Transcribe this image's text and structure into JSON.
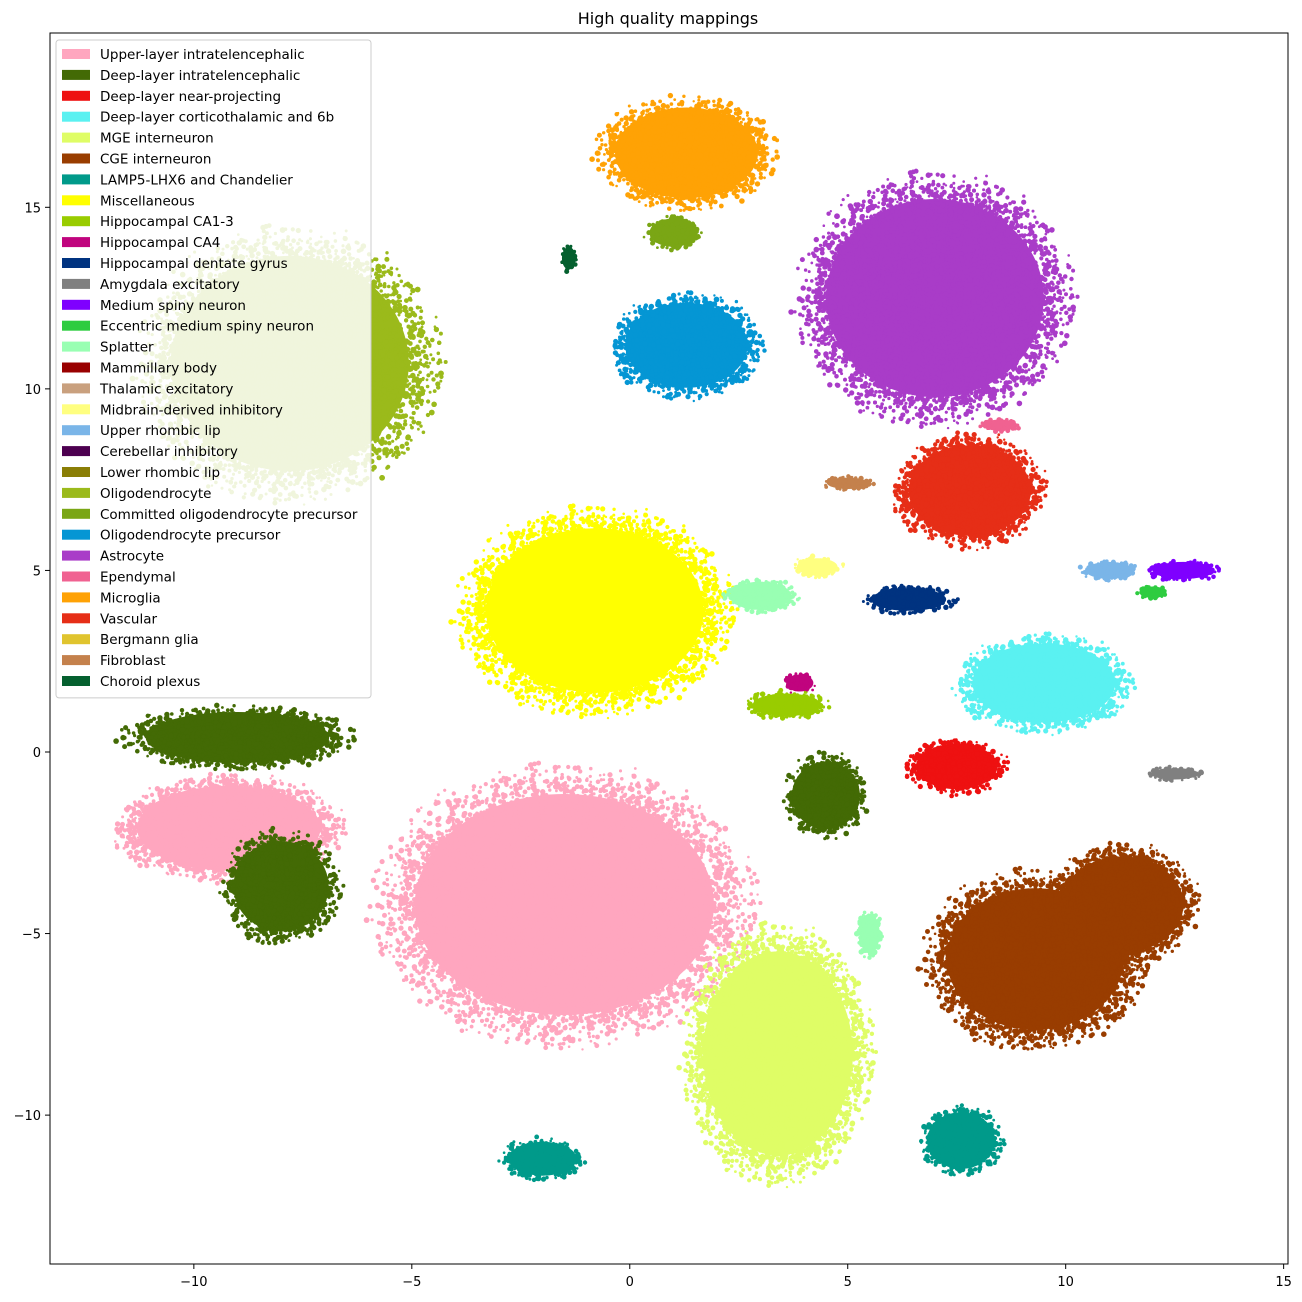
{
  "chart_data": {
    "type": "scatter",
    "title": "High quality mappings",
    "xlabel": "",
    "ylabel": "",
    "xlim": [
      -13.3,
      15.1
    ],
    "ylim": [
      -14.1,
      19.8
    ],
    "xticks": [
      -10,
      -5,
      0,
      5,
      10,
      15
    ],
    "yticks": [
      -10,
      -5,
      0,
      5,
      10,
      15
    ],
    "xtick_labels": [
      "−10",
      "−5",
      "0",
      "5",
      "10",
      "15"
    ],
    "ytick_labels": [
      "−10",
      "−5",
      "0",
      "5",
      "10",
      "15"
    ],
    "grid": false,
    "legend_position": "upper-left",
    "series": [
      {
        "name": "Upper-layer intratelencephalic",
        "color": "#ffa6bf",
        "clusters": [
          {
            "cx": -1.5,
            "cy": -4.2,
            "rx": 4.4,
            "ry": 3.9
          },
          {
            "cx": -9.2,
            "cy": -2.1,
            "rx": 2.7,
            "ry": 1.5
          }
        ]
      },
      {
        "name": "Deep-layer intratelencephalic",
        "color": "#436a05",
        "clusters": [
          {
            "cx": -8.0,
            "cy": -3.7,
            "rx": 1.4,
            "ry": 1.6
          },
          {
            "cx": -9.0,
            "cy": 0.4,
            "rx": 2.7,
            "ry": 0.9
          },
          {
            "cx": 4.5,
            "cy": -1.2,
            "rx": 1.0,
            "ry": 1.2
          }
        ]
      },
      {
        "name": "Deep-layer near-projecting",
        "color": "#ee1111",
        "clusters": [
          {
            "cx": 7.5,
            "cy": -0.4,
            "rx": 1.2,
            "ry": 0.8
          }
        ]
      },
      {
        "name": "Deep-layer corticothalamic and 6b",
        "color": "#5af1f1",
        "clusters": [
          {
            "cx": 9.5,
            "cy": 1.9,
            "rx": 2.1,
            "ry": 1.4
          }
        ]
      },
      {
        "name": "MGE interneuron",
        "color": "#dffd66",
        "clusters": [
          {
            "cx": 3.4,
            "cy": -8.3,
            "rx": 2.2,
            "ry": 3.6
          }
        ]
      },
      {
        "name": "CGE interneuron",
        "color": "#993d00",
        "clusters": [
          {
            "cx": 9.3,
            "cy": -5.7,
            "rx": 2.6,
            "ry": 2.5
          },
          {
            "cx": 11.3,
            "cy": -4.2,
            "rx": 1.8,
            "ry": 1.7
          }
        ]
      },
      {
        "name": "LAMP5-LHX6 and Chandelier",
        "color": "#009a8a",
        "clusters": [
          {
            "cx": 7.6,
            "cy": -10.7,
            "rx": 1.0,
            "ry": 1.0
          },
          {
            "cx": -2.0,
            "cy": -11.2,
            "rx": 1.0,
            "ry": 0.6
          }
        ]
      },
      {
        "name": "Miscellaneous",
        "color": "#ffff00",
        "clusters": [
          {
            "cx": -0.8,
            "cy": 3.9,
            "rx": 3.2,
            "ry": 2.9
          }
        ]
      },
      {
        "name": "Hippocampal CA1-3",
        "color": "#99cc00",
        "clusters": [
          {
            "cx": 3.6,
            "cy": 1.3,
            "rx": 1.0,
            "ry": 0.4
          }
        ]
      },
      {
        "name": "Hippocampal CA4",
        "color": "#c0047e",
        "clusters": [
          {
            "cx": 3.9,
            "cy": 1.9,
            "rx": 0.4,
            "ry": 0.3
          }
        ]
      },
      {
        "name": "Hippocampal dentate gyrus",
        "color": "#003380",
        "clusters": [
          {
            "cx": 6.4,
            "cy": 4.2,
            "rx": 1.1,
            "ry": 0.4
          }
        ]
      },
      {
        "name": "Amygdala excitatory",
        "color": "#808080",
        "clusters": [
          {
            "cx": 12.5,
            "cy": -0.6,
            "rx": 0.7,
            "ry": 0.2
          }
        ]
      },
      {
        "name": "Medium spiny neuron",
        "color": "#7f00ff",
        "clusters": [
          {
            "cx": 12.7,
            "cy": 5.0,
            "rx": 0.9,
            "ry": 0.3
          }
        ]
      },
      {
        "name": "Eccentric medium spiny neuron",
        "color": "#2ecc40",
        "clusters": [
          {
            "cx": 12.0,
            "cy": 4.4,
            "rx": 0.4,
            "ry": 0.2
          }
        ]
      },
      {
        "name": "Splatter",
        "color": "#99ffb3",
        "clusters": [
          {
            "cx": 3.0,
            "cy": 4.3,
            "rx": 0.9,
            "ry": 0.5
          },
          {
            "cx": 5.5,
            "cy": -5.0,
            "rx": 0.3,
            "ry": 0.7
          }
        ]
      },
      {
        "name": "Mammillary body",
        "color": "#990000",
        "clusters": []
      },
      {
        "name": "Thalamic excitatory",
        "color": "#c9a07e",
        "clusters": []
      },
      {
        "name": "Midbrain-derived inhibitory",
        "color": "#ffff80",
        "clusters": [
          {
            "cx": 4.3,
            "cy": 5.1,
            "rx": 0.6,
            "ry": 0.3
          }
        ]
      },
      {
        "name": "Upper rhombic lip",
        "color": "#7ab5e8",
        "clusters": [
          {
            "cx": 11.0,
            "cy": 5.0,
            "rx": 0.7,
            "ry": 0.3
          }
        ]
      },
      {
        "name": "Cerebellar inhibitory",
        "color": "#4d0050",
        "clusters": []
      },
      {
        "name": "Lower rhombic lip",
        "color": "#8a7e06",
        "clusters": []
      },
      {
        "name": "Oligodendrocyte",
        "color": "#9bba1b",
        "clusters": [
          {
            "cx": -7.8,
            "cy": 10.7,
            "rx": 3.5,
            "ry": 3.8
          }
        ]
      },
      {
        "name": "Committed oligodendrocyte precursor",
        "color": "#7aa615",
        "clusters": [
          {
            "cx": 1.0,
            "cy": 14.3,
            "rx": 0.7,
            "ry": 0.5
          }
        ]
      },
      {
        "name": "Oligodendrocyte precursor",
        "color": "#0596d4",
        "clusters": [
          {
            "cx": 1.3,
            "cy": 11.2,
            "rx": 1.8,
            "ry": 1.5
          }
        ]
      },
      {
        "name": "Astrocyte",
        "color": "#a93cc8",
        "clusters": [
          {
            "cx": 7.0,
            "cy": 12.5,
            "rx": 3.2,
            "ry": 3.5
          }
        ]
      },
      {
        "name": "Ependymal",
        "color": "#f06291",
        "clusters": [
          {
            "cx": 8.5,
            "cy": 9.0,
            "rx": 0.5,
            "ry": 0.2
          }
        ]
      },
      {
        "name": "Microglia",
        "color": "#ffa205",
        "clusters": [
          {
            "cx": 1.3,
            "cy": 16.5,
            "rx": 2.1,
            "ry": 1.6
          }
        ]
      },
      {
        "name": "Vascular",
        "color": "#e62e17",
        "clusters": [
          {
            "cx": 7.8,
            "cy": 7.2,
            "rx": 1.8,
            "ry": 1.6
          }
        ]
      },
      {
        "name": "Bergmann glia",
        "color": "#e0c42e",
        "clusters": []
      },
      {
        "name": "Fibroblast",
        "color": "#c4814c",
        "clusters": [
          {
            "cx": 5.0,
            "cy": 7.4,
            "rx": 0.6,
            "ry": 0.2
          }
        ]
      },
      {
        "name": "Choroid plexus",
        "color": "#05602f",
        "clusters": [
          {
            "cx": -1.4,
            "cy": 13.6,
            "rx": 0.2,
            "ry": 0.4
          }
        ]
      }
    ]
  }
}
